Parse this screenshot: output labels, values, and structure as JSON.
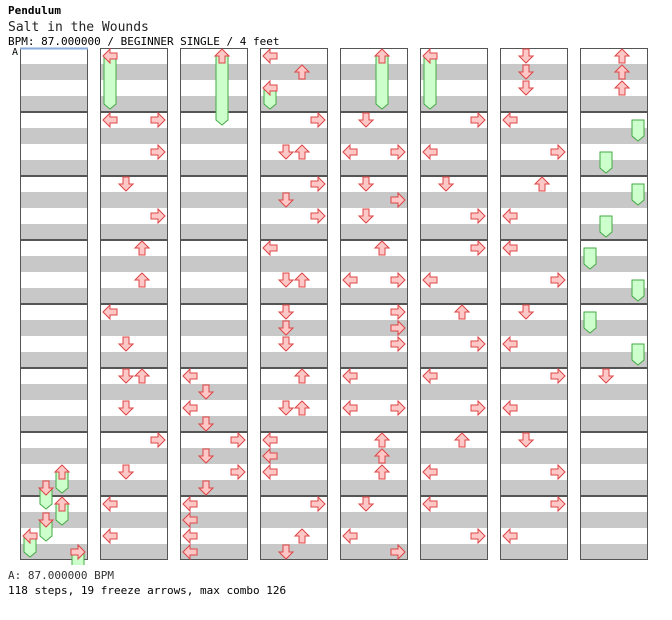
{
  "header": {
    "artist": "Pendulum",
    "title": "Salt in the Wounds",
    "meta": "BPM: 87.000000 / BEGINNER SINGLE / 4 feet",
    "bpm_marker": "A"
  },
  "footer": {
    "bpm_line": "A: 87.000000 BPM",
    "stats_line": "118 steps, 19 freeze arrows, max combo 126"
  },
  "chart_data": {
    "type": "step-chart",
    "columns": 8,
    "measures_per_column": 8,
    "beats_per_measure": 4,
    "lanes": [
      "left",
      "down",
      "up",
      "right"
    ],
    "colors": {
      "arrow_fill": "#ffc8c8",
      "arrow_stroke": "#dd4444",
      "freeze_fill": "#ccffcc",
      "freeze_stroke": "#44aa44",
      "stripe": "#c8c8c8",
      "bpm_line": "#88aadd"
    },
    "notes": [
      {
        "col": 0,
        "beat": 26,
        "lane": "up"
      },
      {
        "col": 0,
        "beat": 27,
        "lane": "down"
      },
      {
        "col": 0,
        "beat": 28,
        "lane": "up"
      },
      {
        "col": 0,
        "beat": 29,
        "lane": "down"
      },
      {
        "col": 0,
        "beat": 30,
        "lane": "left"
      },
      {
        "col": 0,
        "beat": 31,
        "lane": "right"
      },
      {
        "col": 1,
        "beat": 0,
        "lane": "left"
      },
      {
        "col": 1,
        "beat": 4,
        "lane": "left"
      },
      {
        "col": 1,
        "beat": 4,
        "lane": "right"
      },
      {
        "col": 1,
        "beat": 6,
        "lane": "right"
      },
      {
        "col": 1,
        "beat": 8,
        "lane": "down"
      },
      {
        "col": 1,
        "beat": 10,
        "lane": "right"
      },
      {
        "col": 1,
        "beat": 12,
        "lane": "up"
      },
      {
        "col": 1,
        "beat": 14,
        "lane": "up"
      },
      {
        "col": 1,
        "beat": 16,
        "lane": "left"
      },
      {
        "col": 1,
        "beat": 18,
        "lane": "down"
      },
      {
        "col": 1,
        "beat": 20,
        "lane": "down"
      },
      {
        "col": 1,
        "beat": 20,
        "lane": "up"
      },
      {
        "col": 1,
        "beat": 22,
        "lane": "down"
      },
      {
        "col": 1,
        "beat": 24,
        "lane": "right"
      },
      {
        "col": 1,
        "beat": 26,
        "lane": "down"
      },
      {
        "col": 1,
        "beat": 28,
        "lane": "left"
      },
      {
        "col": 1,
        "beat": 30,
        "lane": "left"
      },
      {
        "col": 2,
        "beat": 0,
        "lane": "up"
      },
      {
        "col": 2,
        "beat": 20,
        "lane": "left"
      },
      {
        "col": 2,
        "beat": 21,
        "lane": "down"
      },
      {
        "col": 2,
        "beat": 22,
        "lane": "left"
      },
      {
        "col": 2,
        "beat": 23,
        "lane": "down"
      },
      {
        "col": 2,
        "beat": 24,
        "lane": "right"
      },
      {
        "col": 2,
        "beat": 25,
        "lane": "down"
      },
      {
        "col": 2,
        "beat": 26,
        "lane": "right"
      },
      {
        "col": 2,
        "beat": 27,
        "lane": "down"
      },
      {
        "col": 2,
        "beat": 28,
        "lane": "left"
      },
      {
        "col": 2,
        "beat": 29,
        "lane": "left"
      },
      {
        "col": 2,
        "beat": 30,
        "lane": "left"
      },
      {
        "col": 2,
        "beat": 31,
        "lane": "left"
      },
      {
        "col": 3,
        "beat": 0,
        "lane": "left"
      },
      {
        "col": 3,
        "beat": 1,
        "lane": "up"
      },
      {
        "col": 3,
        "beat": 2,
        "lane": "left"
      },
      {
        "col": 3,
        "beat": 4,
        "lane": "right"
      },
      {
        "col": 3,
        "beat": 6,
        "lane": "down"
      },
      {
        "col": 3,
        "beat": 6,
        "lane": "up"
      },
      {
        "col": 3,
        "beat": 8,
        "lane": "right"
      },
      {
        "col": 3,
        "beat": 9,
        "lane": "down"
      },
      {
        "col": 3,
        "beat": 10,
        "lane": "right"
      },
      {
        "col": 3,
        "beat": 12,
        "lane": "left"
      },
      {
        "col": 3,
        "beat": 14,
        "lane": "down"
      },
      {
        "col": 3,
        "beat": 14,
        "lane": "up"
      },
      {
        "col": 3,
        "beat": 16,
        "lane": "down"
      },
      {
        "col": 3,
        "beat": 17,
        "lane": "down"
      },
      {
        "col": 3,
        "beat": 18,
        "lane": "down"
      },
      {
        "col": 3,
        "beat": 20,
        "lane": "up"
      },
      {
        "col": 3,
        "beat": 22,
        "lane": "down"
      },
      {
        "col": 3,
        "beat": 22,
        "lane": "up"
      },
      {
        "col": 3,
        "beat": 24,
        "lane": "left"
      },
      {
        "col": 3,
        "beat": 25,
        "lane": "left"
      },
      {
        "col": 3,
        "beat": 26,
        "lane": "left"
      },
      {
        "col": 3,
        "beat": 28,
        "lane": "right"
      },
      {
        "col": 3,
        "beat": 30,
        "lane": "up"
      },
      {
        "col": 3,
        "beat": 31,
        "lane": "down"
      },
      {
        "col": 4,
        "beat": 0,
        "lane": "up"
      },
      {
        "col": 4,
        "beat": 4,
        "lane": "down"
      },
      {
        "col": 4,
        "beat": 6,
        "lane": "left"
      },
      {
        "col": 4,
        "beat": 6,
        "lane": "right"
      },
      {
        "col": 4,
        "beat": 8,
        "lane": "down"
      },
      {
        "col": 4,
        "beat": 9,
        "lane": "right"
      },
      {
        "col": 4,
        "beat": 10,
        "lane": "down"
      },
      {
        "col": 4,
        "beat": 12,
        "lane": "up"
      },
      {
        "col": 4,
        "beat": 14,
        "lane": "left"
      },
      {
        "col": 4,
        "beat": 14,
        "lane": "right"
      },
      {
        "col": 4,
        "beat": 16,
        "lane": "right"
      },
      {
        "col": 4,
        "beat": 17,
        "lane": "right"
      },
      {
        "col": 4,
        "beat": 18,
        "lane": "right"
      },
      {
        "col": 4,
        "beat": 20,
        "lane": "left"
      },
      {
        "col": 4,
        "beat": 22,
        "lane": "left"
      },
      {
        "col": 4,
        "beat": 22,
        "lane": "right"
      },
      {
        "col": 4,
        "beat": 24,
        "lane": "up"
      },
      {
        "col": 4,
        "beat": 25,
        "lane": "up"
      },
      {
        "col": 4,
        "beat": 26,
        "lane": "up"
      },
      {
        "col": 4,
        "beat": 28,
        "lane": "down"
      },
      {
        "col": 4,
        "beat": 30,
        "lane": "left"
      },
      {
        "col": 4,
        "beat": 31,
        "lane": "right"
      },
      {
        "col": 5,
        "beat": 0,
        "lane": "left"
      },
      {
        "col": 5,
        "beat": 4,
        "lane": "right"
      },
      {
        "col": 5,
        "beat": 6,
        "lane": "left"
      },
      {
        "col": 5,
        "beat": 8,
        "lane": "down"
      },
      {
        "col": 5,
        "beat": 10,
        "lane": "right"
      },
      {
        "col": 5,
        "beat": 12,
        "lane": "right"
      },
      {
        "col": 5,
        "beat": 14,
        "lane": "left"
      },
      {
        "col": 5,
        "beat": 16,
        "lane": "up"
      },
      {
        "col": 5,
        "beat": 18,
        "lane": "right"
      },
      {
        "col": 5,
        "beat": 20,
        "lane": "left"
      },
      {
        "col": 5,
        "beat": 22,
        "lane": "right"
      },
      {
        "col": 5,
        "beat": 24,
        "lane": "up"
      },
      {
        "col": 5,
        "beat": 26,
        "lane": "left"
      },
      {
        "col": 5,
        "beat": 28,
        "lane": "left"
      },
      {
        "col": 5,
        "beat": 30,
        "lane": "right"
      },
      {
        "col": 6,
        "beat": 0,
        "lane": "down"
      },
      {
        "col": 6,
        "beat": 1,
        "lane": "down"
      },
      {
        "col": 6,
        "beat": 2,
        "lane": "down"
      },
      {
        "col": 6,
        "beat": 4,
        "lane": "left"
      },
      {
        "col": 6,
        "beat": 6,
        "lane": "right"
      },
      {
        "col": 6,
        "beat": 8,
        "lane": "up"
      },
      {
        "col": 6,
        "beat": 10,
        "lane": "left"
      },
      {
        "col": 6,
        "beat": 12,
        "lane": "left"
      },
      {
        "col": 6,
        "beat": 14,
        "lane": "right"
      },
      {
        "col": 6,
        "beat": 16,
        "lane": "down"
      },
      {
        "col": 6,
        "beat": 18,
        "lane": "left"
      },
      {
        "col": 6,
        "beat": 20,
        "lane": "right"
      },
      {
        "col": 6,
        "beat": 22,
        "lane": "left"
      },
      {
        "col": 6,
        "beat": 24,
        "lane": "down"
      },
      {
        "col": 6,
        "beat": 26,
        "lane": "right"
      },
      {
        "col": 6,
        "beat": 28,
        "lane": "right"
      },
      {
        "col": 6,
        "beat": 30,
        "lane": "left"
      },
      {
        "col": 7,
        "beat": 0,
        "lane": "up"
      },
      {
        "col": 7,
        "beat": 1,
        "lane": "up"
      },
      {
        "col": 7,
        "beat": 2,
        "lane": "up"
      },
      {
        "col": 7,
        "beat": 20,
        "lane": "down"
      }
    ],
    "freezes": [
      {
        "col": 0,
        "start": 26,
        "end": 27,
        "lane": "up"
      },
      {
        "col": 0,
        "start": 27,
        "end": 28,
        "lane": "down"
      },
      {
        "col": 0,
        "start": 28,
        "end": 29,
        "lane": "up"
      },
      {
        "col": 0,
        "start": 29,
        "end": 30,
        "lane": "down"
      },
      {
        "col": 0,
        "start": 30,
        "end": 31,
        "lane": "left"
      },
      {
        "col": 0,
        "start": 31,
        "end": 32,
        "lane": "right"
      },
      {
        "col": 1,
        "start": 0,
        "end": 3,
        "lane": "left"
      },
      {
        "col": 2,
        "start": 0,
        "end": 4,
        "lane": "up"
      },
      {
        "col": 3,
        "start": 2,
        "end": 3,
        "lane": "left"
      },
      {
        "col": 4,
        "start": 0,
        "end": 3,
        "lane": "up"
      },
      {
        "col": 5,
        "start": 0,
        "end": 3,
        "lane": "left"
      },
      {
        "col": 7,
        "start": 4,
        "end": 5,
        "lane": "right"
      },
      {
        "col": 7,
        "start": 6,
        "end": 7,
        "lane": "down"
      },
      {
        "col": 7,
        "start": 8,
        "end": 9,
        "lane": "right"
      },
      {
        "col": 7,
        "start": 10,
        "end": 11,
        "lane": "down"
      },
      {
        "col": 7,
        "start": 12,
        "end": 13,
        "lane": "left"
      },
      {
        "col": 7,
        "start": 14,
        "end": 15,
        "lane": "right"
      },
      {
        "col": 7,
        "start": 16,
        "end": 17,
        "lane": "left"
      },
      {
        "col": 7,
        "start": 18,
        "end": 19,
        "lane": "right"
      }
    ]
  }
}
